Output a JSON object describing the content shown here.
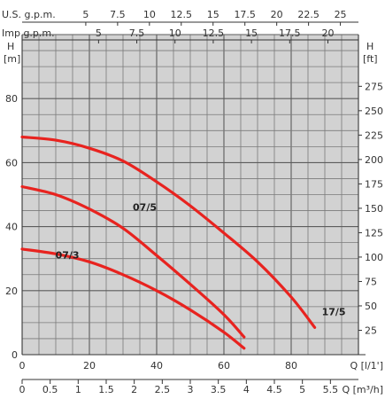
{
  "chart_data": {
    "type": "line",
    "title": "",
    "grid": true,
    "xlabel": "Q [l/1']",
    "ylabel": "H [m]",
    "secondary_ylabel": "H [ft]",
    "xlim": [
      0,
      100
    ],
    "ylim": [
      0,
      100
    ],
    "y_right_lim": [
      0,
      328
    ],
    "x_ticks": [
      "0",
      "20",
      "40",
      "60",
      "80"
    ],
    "y_ticks": [
      "0",
      "20",
      "40",
      "60",
      "80"
    ],
    "y_right_ticks": [
      "25",
      "50",
      "75",
      "100",
      "125",
      "150",
      "175",
      "200",
      "225",
      "250",
      "275"
    ],
    "secondary_x_axes": [
      {
        "label": "U.S. g.p.m.",
        "ticks": [
          "5",
          "7.5",
          "10",
          "12.5",
          "15",
          "17.5",
          "20",
          "22.5",
          "25"
        ]
      },
      {
        "label": "Imp g.p.m.",
        "ticks": [
          "5",
          "7.5",
          "10",
          "12.5",
          "15",
          "17.5",
          "20"
        ]
      }
    ],
    "bottom_x_axis": {
      "label": "Q [m³/h]",
      "ticks": [
        "0",
        "0.5",
        "1",
        "1.5",
        "2",
        "2.5",
        "3",
        "3.5",
        "4",
        "4.5",
        "5",
        "5.5"
      ]
    },
    "series": [
      {
        "name": "17/5",
        "color": "#e8231f",
        "x": [
          0,
          10,
          20,
          30,
          40,
          50,
          60,
          70,
          80,
          87
        ],
        "y": [
          68,
          67,
          64.5,
          60.5,
          54,
          46.5,
          38,
          29,
          18,
          8.5
        ]
      },
      {
        "name": "07/5",
        "color": "#e8231f",
        "x": [
          0,
          10,
          20,
          30,
          40,
          50,
          60,
          66
        ],
        "y": [
          52.5,
          50,
          45.5,
          39.5,
          31,
          22,
          12.5,
          5.5
        ]
      },
      {
        "name": "07/3",
        "color": "#e8231f",
        "x": [
          0,
          10,
          20,
          30,
          40,
          50,
          60,
          66
        ],
        "y": [
          33,
          31.5,
          29,
          25,
          20,
          14,
          7,
          2
        ]
      }
    ]
  }
}
